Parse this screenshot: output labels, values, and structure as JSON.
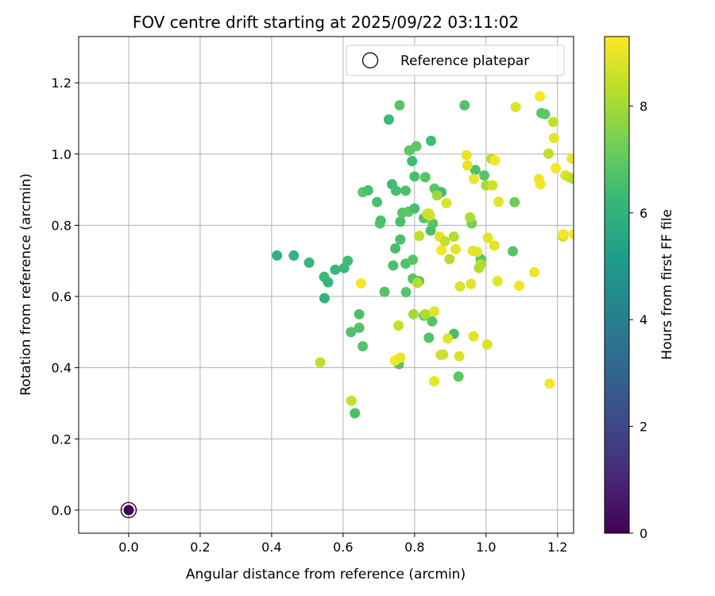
{
  "chart_data": {
    "type": "scatter",
    "title": "FOV centre drift starting at 2025/09/22 03:11:02",
    "xlabel": "Angular distance from reference (arcmin)",
    "ylabel": "Rotation from reference (arcmin)",
    "xlim": [
      -0.14,
      1.245
    ],
    "ylim": [
      -0.065,
      1.33
    ],
    "grid": true,
    "xticks": [
      0.0,
      0.2,
      0.4,
      0.6,
      0.8,
      1.0,
      1.2
    ],
    "xtick_labels": [
      "0.0",
      "0.2",
      "0.4",
      "0.6",
      "0.8",
      "1.0",
      "1.2"
    ],
    "yticks": [
      0.0,
      0.2,
      0.4,
      0.6,
      0.8,
      1.0,
      1.2
    ],
    "ytick_labels": [
      "0.0",
      "0.2",
      "0.4",
      "0.6",
      "0.8",
      "1.0",
      "1.2"
    ],
    "legend": {
      "position": "top-right",
      "entries": [
        "Reference platepar"
      ]
    },
    "reference_point": {
      "x": 0.0,
      "y": 0.0,
      "label": "Reference platepar",
      "hours": 0.1
    },
    "colorbar": {
      "label": "Hours from first FF file",
      "min": 0,
      "max": 9.3,
      "ticks": [
        0,
        2,
        4,
        6,
        8
      ],
      "tick_labels": [
        "0",
        "2",
        "4",
        "6",
        "8"
      ],
      "colormap": "viridis",
      "stops": [
        "#440154",
        "#482878",
        "#3e4989",
        "#31688e",
        "#26828e",
        "#1f9e89",
        "#35b779",
        "#6ece58",
        "#b5de2b",
        "#fde725"
      ]
    },
    "points": [
      [
        0.415,
        0.715,
        6.0
      ],
      [
        0.462,
        0.715,
        6.1
      ],
      [
        0.505,
        0.695,
        6.1
      ],
      [
        0.547,
        0.655,
        6.3
      ],
      [
        0.548,
        0.595,
        6.0
      ],
      [
        0.558,
        0.64,
        6.2
      ],
      [
        0.578,
        0.675,
        6.2
      ],
      [
        0.603,
        0.68,
        6.3
      ],
      [
        0.613,
        0.7,
        6.4
      ],
      [
        0.622,
        0.5,
        6.7
      ],
      [
        0.633,
        0.272,
        6.6
      ],
      [
        0.645,
        0.55,
        6.6
      ],
      [
        0.645,
        0.512,
        6.7
      ],
      [
        0.655,
        0.46,
        6.8
      ],
      [
        0.655,
        0.893,
        6.9
      ],
      [
        0.67,
        0.898,
        6.6
      ],
      [
        0.695,
        0.865,
        6.6
      ],
      [
        0.703,
        0.805,
        6.7
      ],
      [
        0.705,
        0.813,
        6.6
      ],
      [
        0.716,
        0.613,
        6.8
      ],
      [
        0.728,
        1.097,
        6.3
      ],
      [
        0.737,
        0.915,
        6.4
      ],
      [
        0.74,
        0.687,
        6.6
      ],
      [
        0.746,
        0.735,
        6.5
      ],
      [
        0.748,
        0.897,
        6.5
      ],
      [
        0.756,
        0.41,
        6.8
      ],
      [
        0.758,
        1.137,
        6.8
      ],
      [
        0.76,
        0.81,
        6.6
      ],
      [
        0.76,
        0.76,
        6.6
      ],
      [
        0.766,
        0.835,
        6.8
      ],
      [
        0.775,
        0.897,
        6.6
      ],
      [
        0.775,
        0.692,
        6.7
      ],
      [
        0.776,
        0.612,
        6.8
      ],
      [
        0.783,
        0.838,
        6.9
      ],
      [
        0.785,
        1.01,
        6.9
      ],
      [
        0.793,
        0.98,
        6.4
      ],
      [
        0.795,
        0.65,
        6.8
      ],
      [
        0.795,
        0.703,
        6.8
      ],
      [
        0.8,
        0.937,
        6.6
      ],
      [
        0.8,
        0.847,
        6.5
      ],
      [
        0.805,
        1.022,
        6.9
      ],
      [
        0.813,
        0.643,
        6.8
      ],
      [
        0.826,
        0.82,
        6.8
      ],
      [
        0.826,
        0.546,
        6.9
      ],
      [
        0.83,
        0.935,
        6.8
      ],
      [
        0.84,
        0.484,
        6.7
      ],
      [
        0.845,
        0.785,
        6.6
      ],
      [
        0.846,
        1.037,
        6.4
      ],
      [
        0.849,
        0.53,
        6.8
      ],
      [
        0.851,
        0.805,
        6.8
      ],
      [
        0.856,
        0.903,
        6.9
      ],
      [
        0.866,
        0.89,
        6.5
      ],
      [
        0.875,
        0.893,
        6.4
      ],
      [
        0.91,
        0.495,
        6.5
      ],
      [
        0.923,
        0.375,
        6.9
      ],
      [
        0.94,
        1.137,
        6.7
      ],
      [
        0.96,
        0.805,
        7.3
      ],
      [
        0.97,
        0.955,
        6.6
      ],
      [
        0.985,
        0.705,
        6.8
      ],
      [
        0.995,
        0.94,
        6.8
      ],
      [
        1.075,
        0.727,
        6.8
      ],
      [
        1.08,
        0.865,
        7.2
      ],
      [
        1.155,
        1.115,
        6.9
      ],
      [
        1.165,
        1.112,
        6.9
      ],
      [
        0.755,
        0.518,
        8.5
      ],
      [
        0.797,
        0.55,
        8.0
      ],
      [
        0.808,
        0.638,
        8.3
      ],
      [
        0.813,
        0.77,
        8.4
      ],
      [
        0.83,
        0.55,
        8.2
      ],
      [
        0.84,
        0.833,
        8.8
      ],
      [
        0.843,
        0.827,
        8.6
      ],
      [
        0.855,
        0.558,
        8.9
      ],
      [
        0.855,
        0.362,
        9.0
      ],
      [
        0.863,
        0.884,
        7.9
      ],
      [
        0.87,
        0.768,
        8.9
      ],
      [
        0.873,
        0.436,
        8.7
      ],
      [
        0.875,
        0.73,
        9.2
      ],
      [
        0.88,
        0.437,
        8.6
      ],
      [
        0.885,
        0.755,
        8.5
      ],
      [
        0.889,
        0.862,
        8.8
      ],
      [
        0.893,
        0.482,
        8.9
      ],
      [
        0.898,
        0.705,
        8.3
      ],
      [
        0.91,
        0.768,
        8.2
      ],
      [
        0.915,
        0.733,
        8.9
      ],
      [
        0.925,
        0.432,
        8.8
      ],
      [
        0.927,
        0.628,
        8.8
      ],
      [
        0.945,
        0.997,
        9.0
      ],
      [
        0.948,
        0.968,
        8.9
      ],
      [
        0.955,
        0.822,
        8.1
      ],
      [
        0.958,
        0.635,
        8.9
      ],
      [
        0.963,
        0.728,
        9.0
      ],
      [
        0.965,
        0.488,
        8.9
      ],
      [
        0.966,
        0.93,
        9.1
      ],
      [
        0.975,
        0.725,
        8.9
      ],
      [
        0.98,
        0.68,
        8.3
      ],
      [
        0.985,
        0.69,
        8.2
      ],
      [
        1.0,
        0.912,
        8.1
      ],
      [
        1.003,
        0.465,
        8.8
      ],
      [
        1.005,
        0.765,
        8.9
      ],
      [
        1.015,
        0.987,
        8.3
      ],
      [
        1.018,
        0.912,
        8.6
      ],
      [
        1.023,
        0.743,
        8.9
      ],
      [
        1.025,
        0.982,
        9.2
      ],
      [
        1.032,
        0.643,
        8.9
      ],
      [
        1.035,
        0.866,
        8.9
      ],
      [
        1.083,
        1.132,
        8.8
      ],
      [
        1.093,
        0.63,
        9.1
      ],
      [
        1.135,
        0.668,
        9.1
      ],
      [
        1.148,
        0.93,
        9.1
      ],
      [
        1.151,
        1.162,
        9.2
      ],
      [
        1.152,
        0.915,
        9.1
      ],
      [
        1.175,
        1.001,
        8.4
      ],
      [
        1.178,
        0.355,
        9.2
      ],
      [
        1.188,
        1.09,
        8.5
      ],
      [
        1.19,
        1.045,
        9.0
      ],
      [
        1.195,
        0.96,
        9.2
      ],
      [
        1.215,
        0.768,
        8.6
      ],
      [
        1.216,
        0.775,
        9.2
      ],
      [
        1.222,
        0.94,
        8.8
      ],
      [
        1.233,
        0.935,
        8.6
      ],
      [
        1.24,
        0.987,
        9.1
      ],
      [
        1.245,
        0.775,
        9.3
      ],
      [
        1.245,
        0.93,
        8.3
      ],
      [
        0.536,
        0.415,
        8.4
      ],
      [
        0.623,
        0.307,
        8.5
      ],
      [
        0.65,
        0.637,
        9.2
      ],
      [
        0.745,
        0.42,
        9.2
      ],
      [
        0.76,
        0.428,
        9.0
      ],
      [
        0.835,
        0.832,
        8.6
      ]
    ]
  }
}
